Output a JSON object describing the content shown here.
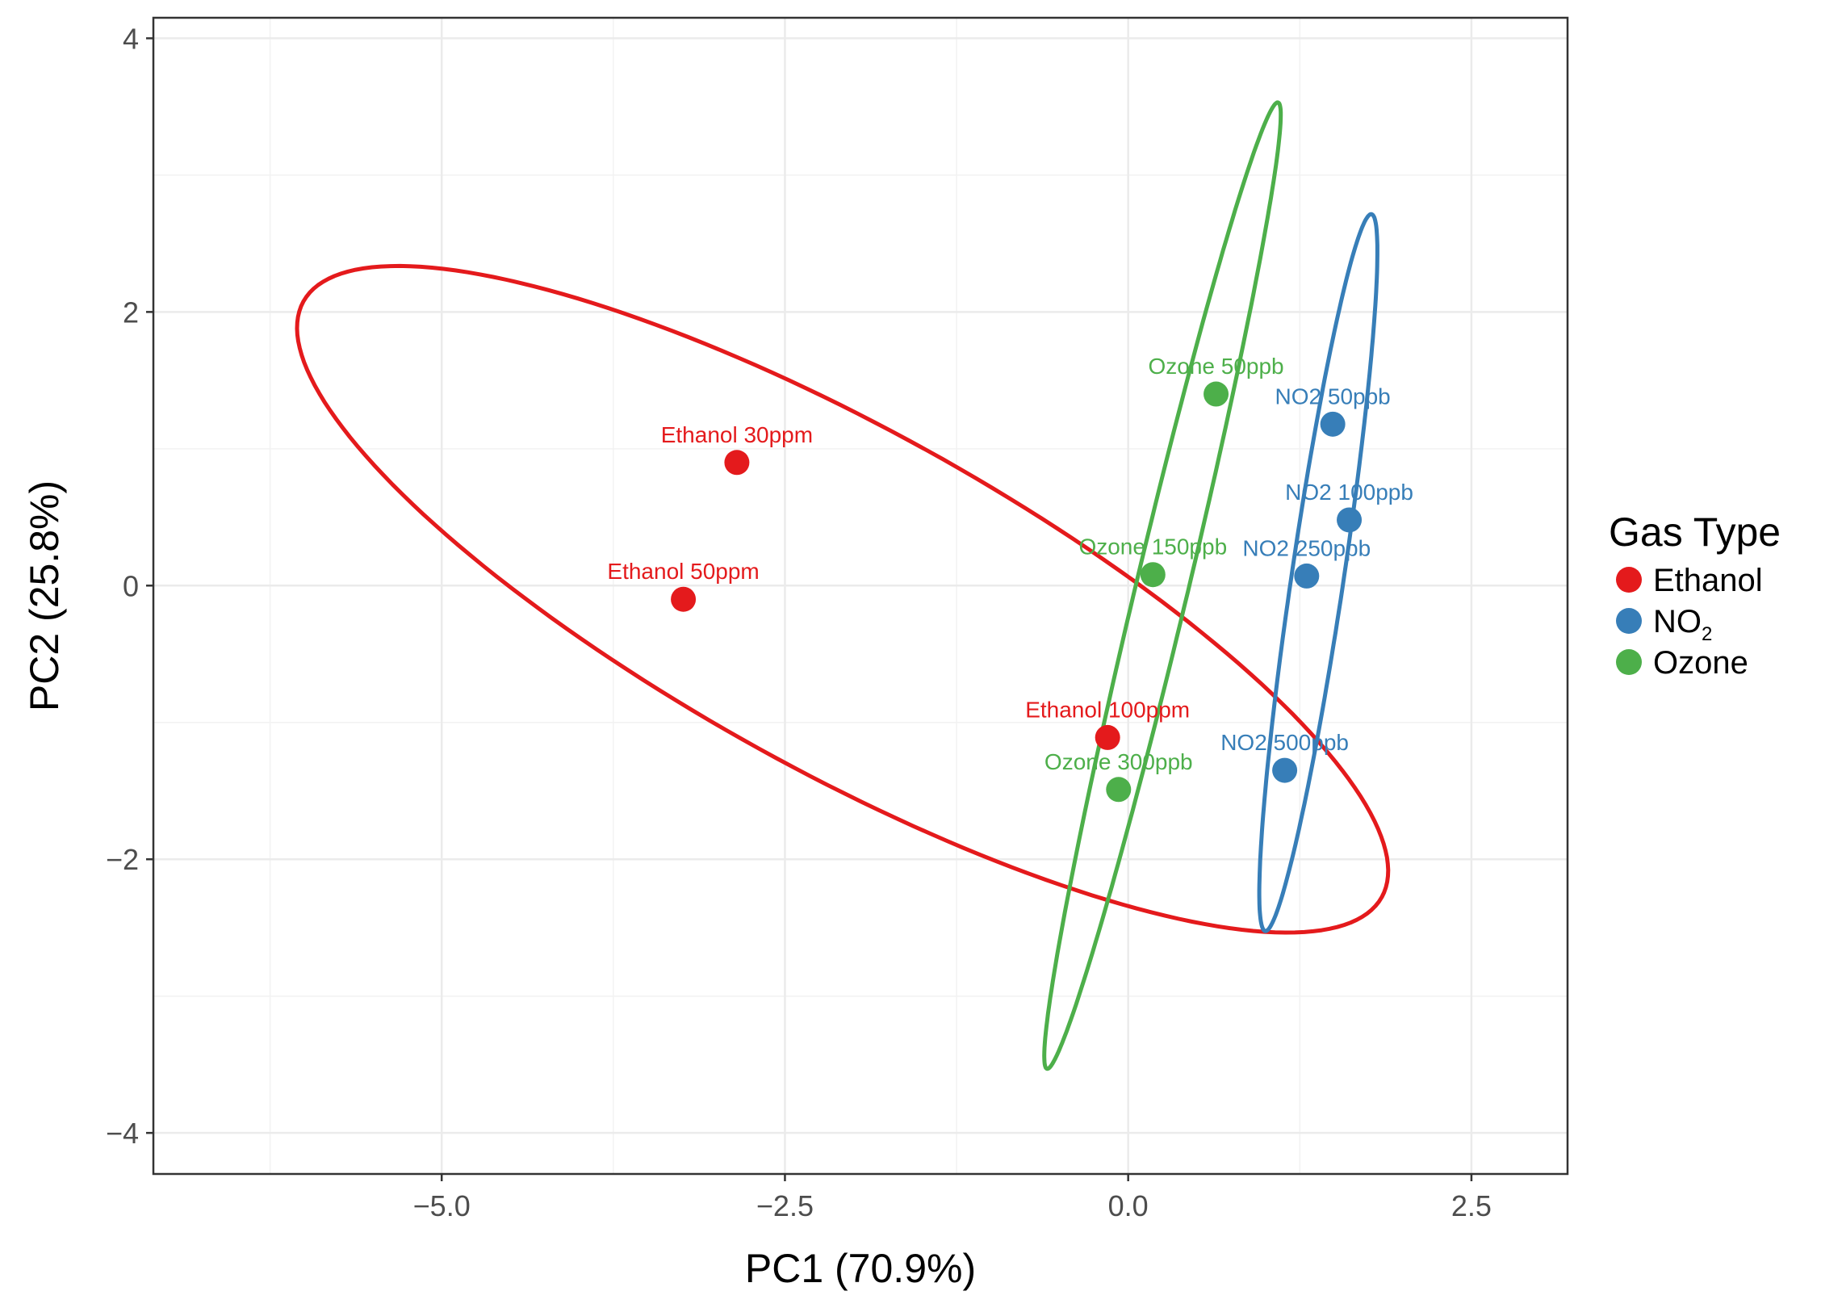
{
  "chart_data": {
    "type": "scatter",
    "xlabel": "PC1 (70.9%)",
    "ylabel": "PC2 (25.8%)",
    "xlim": [
      -7.1,
      3.2
    ],
    "ylim": [
      -4.3,
      4.15
    ],
    "x_ticks": [
      {
        "value": -5.0,
        "label": "−5.0"
      },
      {
        "value": -2.5,
        "label": "−2.5"
      },
      {
        "value": 0.0,
        "label": "0.0"
      },
      {
        "value": 2.5,
        "label": "2.5"
      }
    ],
    "y_ticks": [
      {
        "value": 4,
        "label": "4"
      },
      {
        "value": 2,
        "label": "2"
      },
      {
        "value": 0,
        "label": "0"
      },
      {
        "value": -2,
        "label": "−2"
      },
      {
        "value": -4,
        "label": "−4"
      }
    ],
    "grid": true,
    "legend": {
      "title": "Gas Type",
      "position": "right",
      "entries": [
        {
          "label": "Ethanol",
          "sub": "",
          "color": "#e41a1c"
        },
        {
          "label": "NO",
          "sub": "2",
          "color": "#377eb8"
        },
        {
          "label": "Ozone",
          "sub": "",
          "color": "#4daf4a"
        }
      ]
    },
    "series": [
      {
        "name": "Ethanol",
        "color": "#e41a1c",
        "points": [
          {
            "x": -2.85,
            "y": 0.9,
            "label": "Ethanol 30ppm"
          },
          {
            "x": -3.24,
            "y": -0.1,
            "label": "Ethanol 50ppm"
          },
          {
            "x": -0.15,
            "y": -1.11,
            "label": "Ethanol 100ppm"
          }
        ],
        "ellipse": {
          "center": [
            -2.08,
            -0.1
          ],
          "semi_axes": [
            4.49,
            1.25
          ],
          "angle_deg": -29
        }
      },
      {
        "name": "NO2",
        "color": "#377eb8",
        "points": [
          {
            "x": 1.49,
            "y": 1.18,
            "label": "NO2 50ppb"
          },
          {
            "x": 1.61,
            "y": 0.48,
            "label": "NO2 100ppb"
          },
          {
            "x": 1.3,
            "y": 0.07,
            "label": "NO2 250ppb"
          },
          {
            "x": 1.14,
            "y": -1.35,
            "label": "NO2 500ppb"
          }
        ],
        "ellipse": {
          "center": [
            1.385,
            0.095
          ],
          "semi_axes": [
            2.648,
            0.19
          ],
          "angle_deg": 81.6
        }
      },
      {
        "name": "Ozone",
        "color": "#4daf4a",
        "points": [
          {
            "x": 0.64,
            "y": 1.4,
            "label": "Ozone 50ppb"
          },
          {
            "x": 0.18,
            "y": 0.08,
            "label": "Ozone 150ppb"
          },
          {
            "x": -0.07,
            "y": -1.49,
            "label": "Ozone 300ppb"
          }
        ],
        "ellipse": {
          "center": [
            0.25,
            0.0
          ],
          "semi_axes": [
            3.63,
            0.19
          ],
          "angle_deg": 76.6
        }
      }
    ]
  }
}
